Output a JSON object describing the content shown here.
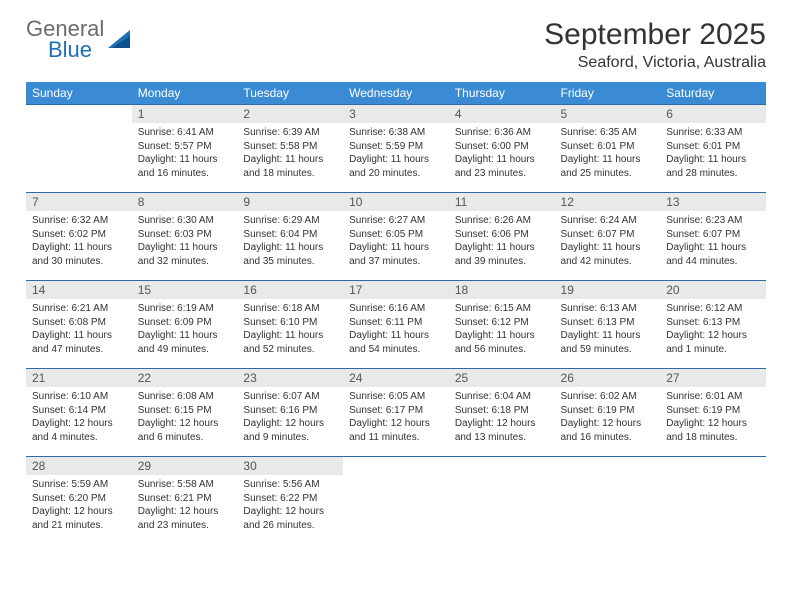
{
  "brand": {
    "general": "General",
    "blue": "Blue"
  },
  "title": "September 2025",
  "location": "Seaford, Victoria, Australia",
  "colors": {
    "header_bg": "#3b8bd4",
    "header_fg": "#ffffff",
    "daynum_bg": "#e9e9e9",
    "daynum_fg": "#555555",
    "rule": "#2d6aa8",
    "text": "#333333",
    "logo_gray": "#6b6b6b",
    "logo_blue": "#1e6fb8"
  },
  "weekdays": [
    "Sunday",
    "Monday",
    "Tuesday",
    "Wednesday",
    "Thursday",
    "Friday",
    "Saturday"
  ],
  "weeks": [
    [
      null,
      {
        "n": "1",
        "sr": "Sunrise: 6:41 AM",
        "ss": "Sunset: 5:57 PM",
        "d1": "Daylight: 11 hours",
        "d2": "and 16 minutes."
      },
      {
        "n": "2",
        "sr": "Sunrise: 6:39 AM",
        "ss": "Sunset: 5:58 PM",
        "d1": "Daylight: 11 hours",
        "d2": "and 18 minutes."
      },
      {
        "n": "3",
        "sr": "Sunrise: 6:38 AM",
        "ss": "Sunset: 5:59 PM",
        "d1": "Daylight: 11 hours",
        "d2": "and 20 minutes."
      },
      {
        "n": "4",
        "sr": "Sunrise: 6:36 AM",
        "ss": "Sunset: 6:00 PM",
        "d1": "Daylight: 11 hours",
        "d2": "and 23 minutes."
      },
      {
        "n": "5",
        "sr": "Sunrise: 6:35 AM",
        "ss": "Sunset: 6:01 PM",
        "d1": "Daylight: 11 hours",
        "d2": "and 25 minutes."
      },
      {
        "n": "6",
        "sr": "Sunrise: 6:33 AM",
        "ss": "Sunset: 6:01 PM",
        "d1": "Daylight: 11 hours",
        "d2": "and 28 minutes."
      }
    ],
    [
      {
        "n": "7",
        "sr": "Sunrise: 6:32 AM",
        "ss": "Sunset: 6:02 PM",
        "d1": "Daylight: 11 hours",
        "d2": "and 30 minutes."
      },
      {
        "n": "8",
        "sr": "Sunrise: 6:30 AM",
        "ss": "Sunset: 6:03 PM",
        "d1": "Daylight: 11 hours",
        "d2": "and 32 minutes."
      },
      {
        "n": "9",
        "sr": "Sunrise: 6:29 AM",
        "ss": "Sunset: 6:04 PM",
        "d1": "Daylight: 11 hours",
        "d2": "and 35 minutes."
      },
      {
        "n": "10",
        "sr": "Sunrise: 6:27 AM",
        "ss": "Sunset: 6:05 PM",
        "d1": "Daylight: 11 hours",
        "d2": "and 37 minutes."
      },
      {
        "n": "11",
        "sr": "Sunrise: 6:26 AM",
        "ss": "Sunset: 6:06 PM",
        "d1": "Daylight: 11 hours",
        "d2": "and 39 minutes."
      },
      {
        "n": "12",
        "sr": "Sunrise: 6:24 AM",
        "ss": "Sunset: 6:07 PM",
        "d1": "Daylight: 11 hours",
        "d2": "and 42 minutes."
      },
      {
        "n": "13",
        "sr": "Sunrise: 6:23 AM",
        "ss": "Sunset: 6:07 PM",
        "d1": "Daylight: 11 hours",
        "d2": "and 44 minutes."
      }
    ],
    [
      {
        "n": "14",
        "sr": "Sunrise: 6:21 AM",
        "ss": "Sunset: 6:08 PM",
        "d1": "Daylight: 11 hours",
        "d2": "and 47 minutes."
      },
      {
        "n": "15",
        "sr": "Sunrise: 6:19 AM",
        "ss": "Sunset: 6:09 PM",
        "d1": "Daylight: 11 hours",
        "d2": "and 49 minutes."
      },
      {
        "n": "16",
        "sr": "Sunrise: 6:18 AM",
        "ss": "Sunset: 6:10 PM",
        "d1": "Daylight: 11 hours",
        "d2": "and 52 minutes."
      },
      {
        "n": "17",
        "sr": "Sunrise: 6:16 AM",
        "ss": "Sunset: 6:11 PM",
        "d1": "Daylight: 11 hours",
        "d2": "and 54 minutes."
      },
      {
        "n": "18",
        "sr": "Sunrise: 6:15 AM",
        "ss": "Sunset: 6:12 PM",
        "d1": "Daylight: 11 hours",
        "d2": "and 56 minutes."
      },
      {
        "n": "19",
        "sr": "Sunrise: 6:13 AM",
        "ss": "Sunset: 6:13 PM",
        "d1": "Daylight: 11 hours",
        "d2": "and 59 minutes."
      },
      {
        "n": "20",
        "sr": "Sunrise: 6:12 AM",
        "ss": "Sunset: 6:13 PM",
        "d1": "Daylight: 12 hours",
        "d2": "and 1 minute."
      }
    ],
    [
      {
        "n": "21",
        "sr": "Sunrise: 6:10 AM",
        "ss": "Sunset: 6:14 PM",
        "d1": "Daylight: 12 hours",
        "d2": "and 4 minutes."
      },
      {
        "n": "22",
        "sr": "Sunrise: 6:08 AM",
        "ss": "Sunset: 6:15 PM",
        "d1": "Daylight: 12 hours",
        "d2": "and 6 minutes."
      },
      {
        "n": "23",
        "sr": "Sunrise: 6:07 AM",
        "ss": "Sunset: 6:16 PM",
        "d1": "Daylight: 12 hours",
        "d2": "and 9 minutes."
      },
      {
        "n": "24",
        "sr": "Sunrise: 6:05 AM",
        "ss": "Sunset: 6:17 PM",
        "d1": "Daylight: 12 hours",
        "d2": "and 11 minutes."
      },
      {
        "n": "25",
        "sr": "Sunrise: 6:04 AM",
        "ss": "Sunset: 6:18 PM",
        "d1": "Daylight: 12 hours",
        "d2": "and 13 minutes."
      },
      {
        "n": "26",
        "sr": "Sunrise: 6:02 AM",
        "ss": "Sunset: 6:19 PM",
        "d1": "Daylight: 12 hours",
        "d2": "and 16 minutes."
      },
      {
        "n": "27",
        "sr": "Sunrise: 6:01 AM",
        "ss": "Sunset: 6:19 PM",
        "d1": "Daylight: 12 hours",
        "d2": "and 18 minutes."
      }
    ],
    [
      {
        "n": "28",
        "sr": "Sunrise: 5:59 AM",
        "ss": "Sunset: 6:20 PM",
        "d1": "Daylight: 12 hours",
        "d2": "and 21 minutes."
      },
      {
        "n": "29",
        "sr": "Sunrise: 5:58 AM",
        "ss": "Sunset: 6:21 PM",
        "d1": "Daylight: 12 hours",
        "d2": "and 23 minutes."
      },
      {
        "n": "30",
        "sr": "Sunrise: 5:56 AM",
        "ss": "Sunset: 6:22 PM",
        "d1": "Daylight: 12 hours",
        "d2": "and 26 minutes."
      },
      null,
      null,
      null,
      null
    ]
  ]
}
